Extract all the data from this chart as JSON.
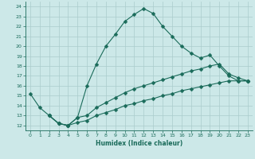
{
  "title": "",
  "xlabel": "Humidex (Indice chaleur)",
  "ylabel": "",
  "xlim": [
    -0.5,
    23.5
  ],
  "ylim": [
    11.5,
    24.5
  ],
  "xticks": [
    0,
    1,
    2,
    3,
    4,
    5,
    6,
    7,
    8,
    9,
    10,
    11,
    12,
    13,
    14,
    15,
    16,
    17,
    18,
    19,
    20,
    21,
    22,
    23
  ],
  "yticks": [
    12,
    13,
    14,
    15,
    16,
    17,
    18,
    19,
    20,
    21,
    22,
    23,
    24
  ],
  "bg_color": "#cce8e8",
  "line_color": "#1a6b5a",
  "grid_color": "#aacccc",
  "line1_x": [
    0,
    1,
    2,
    3,
    4,
    5,
    6,
    7,
    8,
    9,
    10,
    11,
    12,
    13,
    14,
    15,
    16,
    17,
    18,
    19,
    20,
    21,
    22,
    23
  ],
  "line1_y": [
    15.2,
    13.8,
    13.0,
    12.2,
    12.0,
    12.8,
    16.0,
    18.2,
    20.0,
    21.2,
    22.5,
    23.2,
    23.8,
    23.3,
    22.0,
    21.0,
    20.0,
    19.3,
    18.8,
    19.1,
    18.0,
    17.0,
    16.5,
    16.5
  ],
  "line2_x": [
    2,
    3,
    4,
    5,
    6,
    7,
    8,
    9,
    10,
    11,
    12,
    13,
    14,
    15,
    16,
    17,
    18,
    19,
    20,
    21,
    22,
    23
  ],
  "line2_y": [
    13.0,
    12.2,
    12.0,
    12.8,
    13.0,
    13.8,
    14.3,
    14.8,
    15.3,
    15.7,
    16.0,
    16.3,
    16.6,
    16.9,
    17.2,
    17.5,
    17.7,
    18.0,
    18.2,
    17.2,
    16.8,
    16.5
  ],
  "line3_x": [
    2,
    3,
    4,
    5,
    6,
    7,
    8,
    9,
    10,
    11,
    12,
    13,
    14,
    15,
    16,
    17,
    18,
    19,
    20,
    21,
    22,
    23
  ],
  "line3_y": [
    13.0,
    12.2,
    12.0,
    12.3,
    12.5,
    13.0,
    13.3,
    13.6,
    14.0,
    14.2,
    14.5,
    14.7,
    15.0,
    15.2,
    15.5,
    15.7,
    15.9,
    16.1,
    16.3,
    16.5,
    16.5,
    16.5
  ]
}
